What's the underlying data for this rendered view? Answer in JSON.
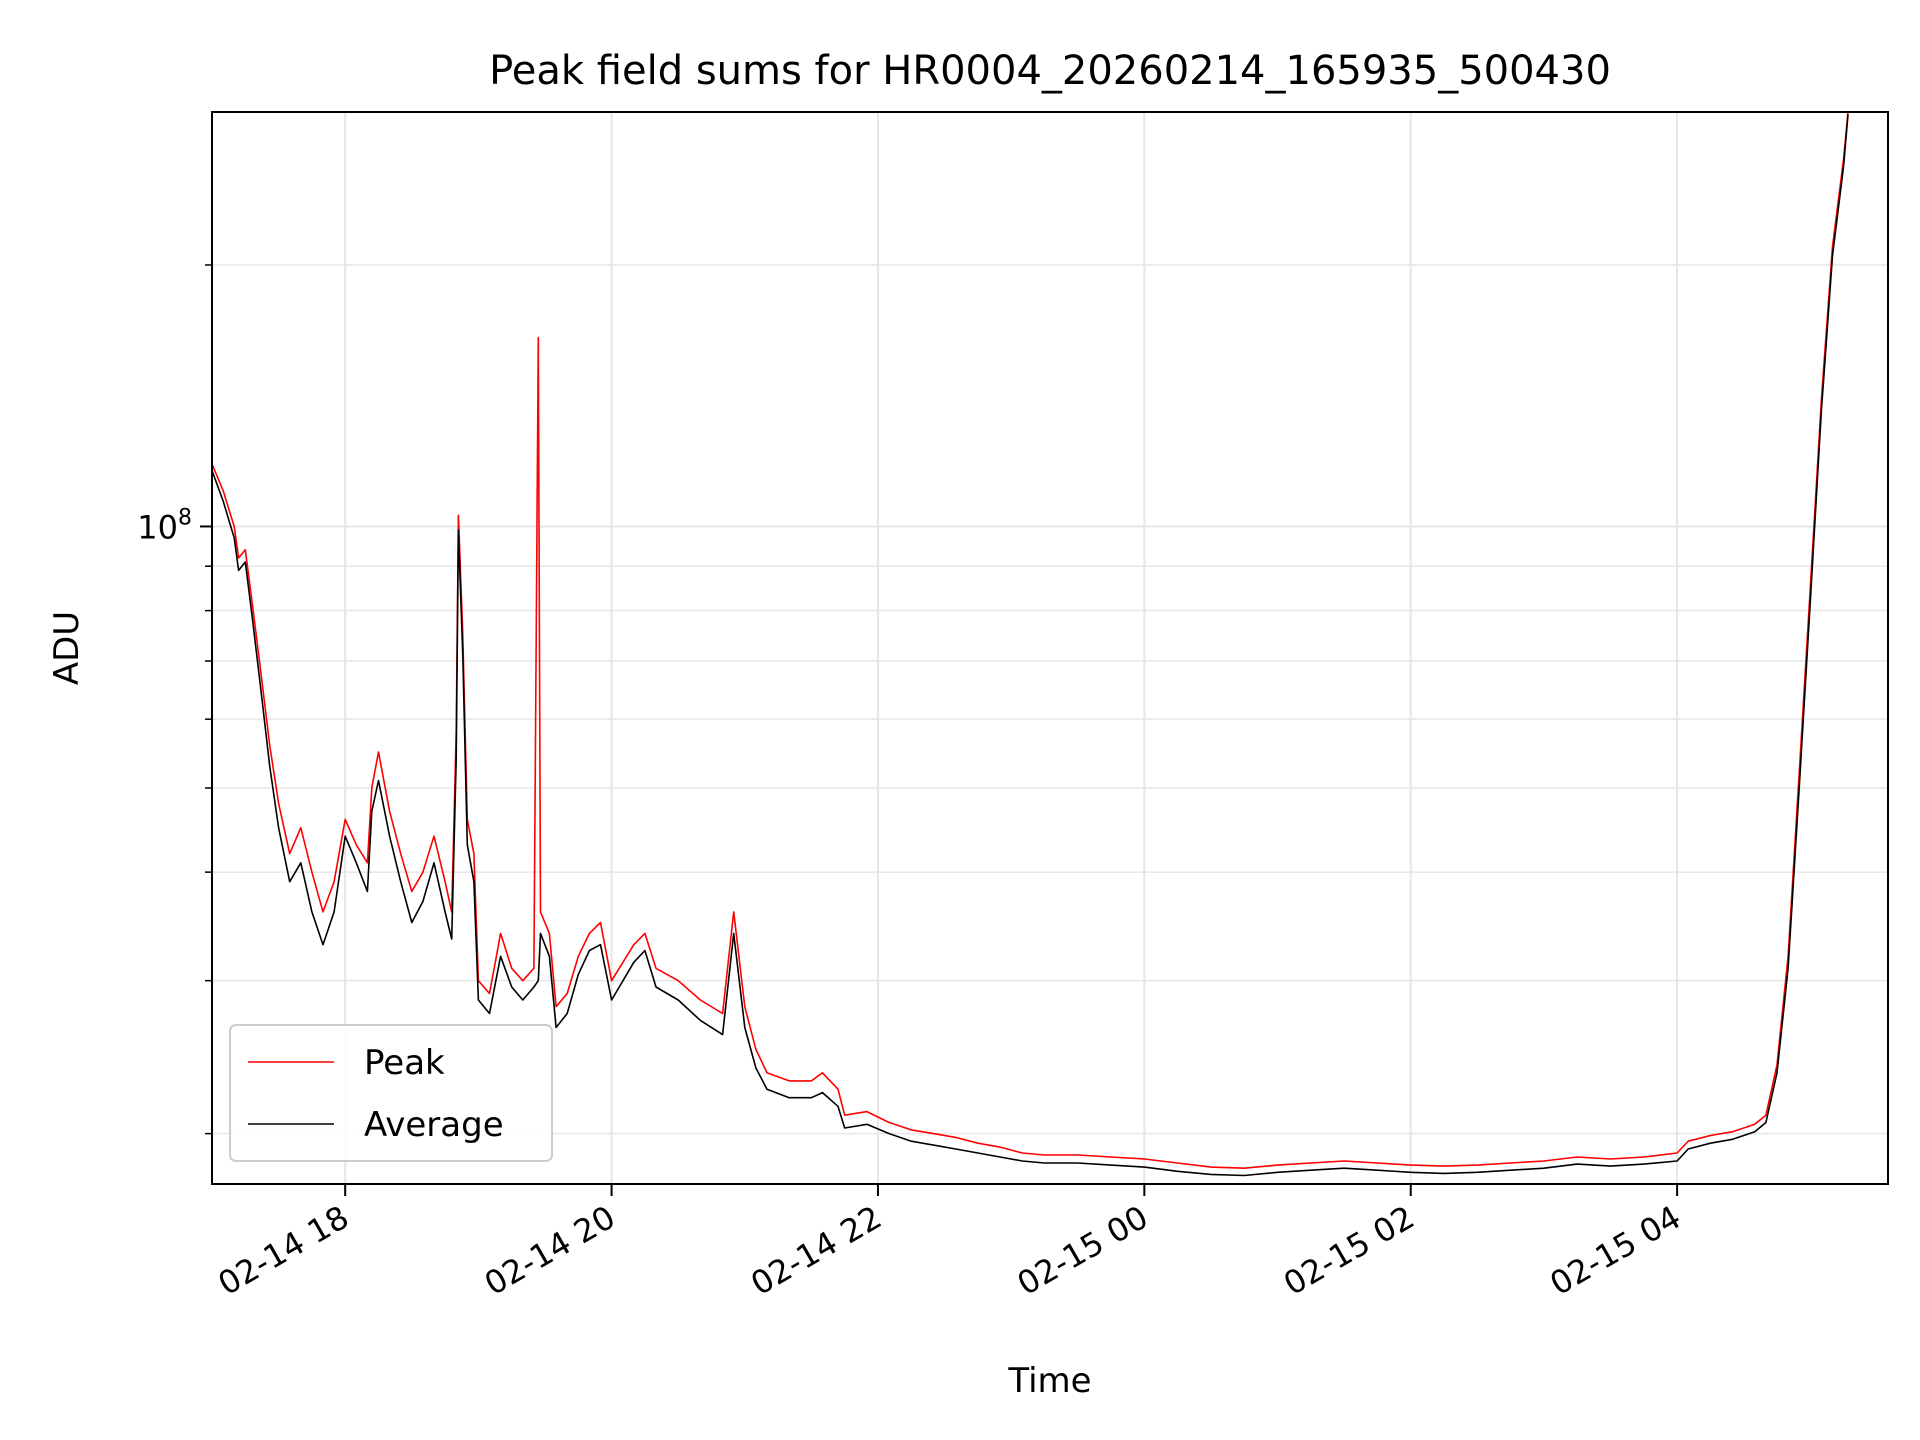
{
  "chart_data": {
    "type": "line",
    "title": "Peak field sums for HR0004_20260214_165935_500430",
    "xlabel": "Time",
    "ylabel": "ADU",
    "y_scale": "log",
    "ylim": [
      17500000,
      300000000
    ],
    "xlim": [
      "2026-02-14 17:00",
      "2026-02-15 05:35"
    ],
    "y_major_tick_labels": [
      {
        "value": 100000000,
        "base": "10",
        "exp": "8"
      }
    ],
    "y_minor_ticks": [
      20000000,
      30000000,
      40000000,
      50000000,
      60000000,
      70000000,
      80000000,
      90000000,
      200000000
    ],
    "x_ticks": [
      {
        "t": "2026-02-14 18:00",
        "label": "02-14 18"
      },
      {
        "t": "2026-02-14 20:00",
        "label": "02-14 20"
      },
      {
        "t": "2026-02-14 22:00",
        "label": "02-14 22"
      },
      {
        "t": "2026-02-15 00:00",
        "label": "02-15 00"
      },
      {
        "t": "2026-02-15 02:00",
        "label": "02-15 02"
      },
      {
        "t": "2026-02-15 04:00",
        "label": "02-15 04"
      }
    ],
    "grid": true,
    "legend_position": "lower-left",
    "series": [
      {
        "name": "Peak",
        "color": "#ff0000",
        "points": [
          [
            "2026-02-14 17:00",
            118000000
          ],
          [
            "2026-02-14 17:05",
            110000000
          ],
          [
            "2026-02-14 17:10",
            100000000
          ],
          [
            "2026-02-14 17:12",
            92000000
          ],
          [
            "2026-02-14 17:15",
            94000000
          ],
          [
            "2026-02-14 17:18",
            82000000
          ],
          [
            "2026-02-14 17:22",
            68000000
          ],
          [
            "2026-02-14 17:26",
            56000000
          ],
          [
            "2026-02-14 17:30",
            48000000
          ],
          [
            "2026-02-14 17:35",
            42000000
          ],
          [
            "2026-02-14 17:40",
            45000000
          ],
          [
            "2026-02-14 17:45",
            40000000
          ],
          [
            "2026-02-14 17:50",
            36000000
          ],
          [
            "2026-02-14 17:55",
            39000000
          ],
          [
            "2026-02-14 18:00",
            46000000
          ],
          [
            "2026-02-14 18:05",
            43000000
          ],
          [
            "2026-02-14 18:10",
            41000000
          ],
          [
            "2026-02-14 18:12",
            50000000
          ],
          [
            "2026-02-14 18:15",
            55000000
          ],
          [
            "2026-02-14 18:20",
            47000000
          ],
          [
            "2026-02-14 18:25",
            42000000
          ],
          [
            "2026-02-14 18:30",
            38000000
          ],
          [
            "2026-02-14 18:35",
            40000000
          ],
          [
            "2026-02-14 18:40",
            44000000
          ],
          [
            "2026-02-14 18:45",
            39000000
          ],
          [
            "2026-02-14 18:48",
            36000000
          ],
          [
            "2026-02-14 18:50",
            58000000
          ],
          [
            "2026-02-14 18:51",
            103000000
          ],
          [
            "2026-02-14 18:53",
            75000000
          ],
          [
            "2026-02-14 18:55",
            46000000
          ],
          [
            "2026-02-14 18:58",
            42000000
          ],
          [
            "2026-02-14 19:00",
            30000000
          ],
          [
            "2026-02-14 19:05",
            29000000
          ],
          [
            "2026-02-14 19:10",
            34000000
          ],
          [
            "2026-02-14 19:15",
            31000000
          ],
          [
            "2026-02-14 19:20",
            30000000
          ],
          [
            "2026-02-14 19:25",
            31000000
          ],
          [
            "2026-02-14 19:27",
            165000000
          ],
          [
            "2026-02-14 19:28",
            36000000
          ],
          [
            "2026-02-14 19:32",
            34000000
          ],
          [
            "2026-02-14 19:35",
            28000000
          ],
          [
            "2026-02-14 19:40",
            29000000
          ],
          [
            "2026-02-14 19:45",
            32000000
          ],
          [
            "2026-02-14 19:50",
            34000000
          ],
          [
            "2026-02-14 19:55",
            35000000
          ],
          [
            "2026-02-14 20:00",
            30000000
          ],
          [
            "2026-02-14 20:10",
            33000000
          ],
          [
            "2026-02-14 20:15",
            34000000
          ],
          [
            "2026-02-14 20:20",
            31000000
          ],
          [
            "2026-02-14 20:30",
            30000000
          ],
          [
            "2026-02-14 20:40",
            28500000
          ],
          [
            "2026-02-14 20:50",
            27500000
          ],
          [
            "2026-02-14 20:55",
            36000000
          ],
          [
            "2026-02-14 21:00",
            28000000
          ],
          [
            "2026-02-14 21:05",
            25000000
          ],
          [
            "2026-02-14 21:10",
            23500000
          ],
          [
            "2026-02-14 21:20",
            23000000
          ],
          [
            "2026-02-14 21:30",
            23000000
          ],
          [
            "2026-02-14 21:35",
            23500000
          ],
          [
            "2026-02-14 21:42",
            22500000
          ],
          [
            "2026-02-14 21:45",
            21000000
          ],
          [
            "2026-02-14 21:55",
            21200000
          ],
          [
            "2026-02-14 22:05",
            20600000
          ],
          [
            "2026-02-14 22:15",
            20200000
          ],
          [
            "2026-02-14 22:25",
            20000000
          ],
          [
            "2026-02-14 22:35",
            19800000
          ],
          [
            "2026-02-14 22:45",
            19500000
          ],
          [
            "2026-02-14 22:55",
            19300000
          ],
          [
            "2026-02-14 23:05",
            19000000
          ],
          [
            "2026-02-14 23:15",
            18900000
          ],
          [
            "2026-02-14 23:30",
            18900000
          ],
          [
            "2026-02-14 23:45",
            18800000
          ],
          [
            "2026-02-15 00:00",
            18700000
          ],
          [
            "2026-02-15 00:15",
            18500000
          ],
          [
            "2026-02-15 00:30",
            18300000
          ],
          [
            "2026-02-15 00:45",
            18250000
          ],
          [
            "2026-02-15 01:00",
            18400000
          ],
          [
            "2026-02-15 01:15",
            18500000
          ],
          [
            "2026-02-15 01:30",
            18600000
          ],
          [
            "2026-02-15 01:45",
            18500000
          ],
          [
            "2026-02-15 02:00",
            18400000
          ],
          [
            "2026-02-15 02:15",
            18350000
          ],
          [
            "2026-02-15 02:30",
            18400000
          ],
          [
            "2026-02-15 02:45",
            18500000
          ],
          [
            "2026-02-15 03:00",
            18600000
          ],
          [
            "2026-02-15 03:15",
            18800000
          ],
          [
            "2026-02-15 03:30",
            18700000
          ],
          [
            "2026-02-15 03:45",
            18800000
          ],
          [
            "2026-02-15 04:00",
            19000000
          ],
          [
            "2026-02-15 04:05",
            19600000
          ],
          [
            "2026-02-15 04:15",
            19900000
          ],
          [
            "2026-02-15 04:25",
            20100000
          ],
          [
            "2026-02-15 04:35",
            20500000
          ],
          [
            "2026-02-15 04:40",
            21000000
          ],
          [
            "2026-02-15 04:45",
            24000000
          ],
          [
            "2026-02-15 04:50",
            32000000
          ],
          [
            "2026-02-15 04:55",
            52000000
          ],
          [
            "2026-02-15 05:00",
            85000000
          ],
          [
            "2026-02-15 05:05",
            140000000
          ],
          [
            "2026-02-15 05:10",
            210000000
          ],
          [
            "2026-02-15 05:15",
            265000000
          ],
          [
            "2026-02-15 05:17",
            300000000
          ]
        ]
      },
      {
        "name": "Average",
        "color": "#000000",
        "points": [
          [
            "2026-02-14 17:00",
            116000000
          ],
          [
            "2026-02-14 17:05",
            107000000
          ],
          [
            "2026-02-14 17:10",
            97000000
          ],
          [
            "2026-02-14 17:12",
            89000000
          ],
          [
            "2026-02-14 17:15",
            91000000
          ],
          [
            "2026-02-14 17:18",
            79000000
          ],
          [
            "2026-02-14 17:22",
            65000000
          ],
          [
            "2026-02-14 17:26",
            53000000
          ],
          [
            "2026-02-14 17:30",
            45000000
          ],
          [
            "2026-02-14 17:35",
            39000000
          ],
          [
            "2026-02-14 17:40",
            41000000
          ],
          [
            "2026-02-14 17:45",
            36000000
          ],
          [
            "2026-02-14 17:50",
            33000000
          ],
          [
            "2026-02-14 17:55",
            36000000
          ],
          [
            "2026-02-14 18:00",
            44000000
          ],
          [
            "2026-02-14 18:05",
            41000000
          ],
          [
            "2026-02-14 18:10",
            38000000
          ],
          [
            "2026-02-14 18:12",
            47000000
          ],
          [
            "2026-02-14 18:15",
            51000000
          ],
          [
            "2026-02-14 18:20",
            44000000
          ],
          [
            "2026-02-14 18:25",
            39000000
          ],
          [
            "2026-02-14 18:30",
            35000000
          ],
          [
            "2026-02-14 18:35",
            37000000
          ],
          [
            "2026-02-14 18:40",
            41000000
          ],
          [
            "2026-02-14 18:45",
            36000000
          ],
          [
            "2026-02-14 18:48",
            33500000
          ],
          [
            "2026-02-14 18:50",
            54000000
          ],
          [
            "2026-02-14 18:51",
            99000000
          ],
          [
            "2026-02-14 18:53",
            71000000
          ],
          [
            "2026-02-14 18:55",
            43000000
          ],
          [
            "2026-02-14 18:58",
            39000000
          ],
          [
            "2026-02-14 19:00",
            28500000
          ],
          [
            "2026-02-14 19:05",
            27500000
          ],
          [
            "2026-02-14 19:10",
            32000000
          ],
          [
            "2026-02-14 19:15",
            29500000
          ],
          [
            "2026-02-14 19:20",
            28500000
          ],
          [
            "2026-02-14 19:25",
            29500000
          ],
          [
            "2026-02-14 19:27",
            30000000
          ],
          [
            "2026-02-14 19:28",
            34000000
          ],
          [
            "2026-02-14 19:32",
            32000000
          ],
          [
            "2026-02-14 19:35",
            26500000
          ],
          [
            "2026-02-14 19:40",
            27500000
          ],
          [
            "2026-02-14 19:45",
            30500000
          ],
          [
            "2026-02-14 19:50",
            32500000
          ],
          [
            "2026-02-14 19:55",
            33000000
          ],
          [
            "2026-02-14 20:00",
            28500000
          ],
          [
            "2026-02-14 20:10",
            31500000
          ],
          [
            "2026-02-14 20:15",
            32500000
          ],
          [
            "2026-02-14 20:20",
            29500000
          ],
          [
            "2026-02-14 20:30",
            28500000
          ],
          [
            "2026-02-14 20:40",
            27000000
          ],
          [
            "2026-02-14 20:50",
            26000000
          ],
          [
            "2026-02-14 20:55",
            34000000
          ],
          [
            "2026-02-14 21:00",
            26500000
          ],
          [
            "2026-02-14 21:05",
            23800000
          ],
          [
            "2026-02-14 21:10",
            22500000
          ],
          [
            "2026-02-14 21:20",
            22000000
          ],
          [
            "2026-02-14 21:30",
            22000000
          ],
          [
            "2026-02-14 21:35",
            22300000
          ],
          [
            "2026-02-14 21:42",
            21500000
          ],
          [
            "2026-02-14 21:45",
            20300000
          ],
          [
            "2026-02-14 21:55",
            20500000
          ],
          [
            "2026-02-14 22:05",
            20000000
          ],
          [
            "2026-02-14 22:15",
            19600000
          ],
          [
            "2026-02-14 22:25",
            19400000
          ],
          [
            "2026-02-14 22:35",
            19200000
          ],
          [
            "2026-02-14 22:45",
            19000000
          ],
          [
            "2026-02-14 22:55",
            18800000
          ],
          [
            "2026-02-14 23:05",
            18600000
          ],
          [
            "2026-02-14 23:15",
            18500000
          ],
          [
            "2026-02-14 23:30",
            18500000
          ],
          [
            "2026-02-14 23:45",
            18400000
          ],
          [
            "2026-02-15 00:00",
            18300000
          ],
          [
            "2026-02-15 00:15",
            18100000
          ],
          [
            "2026-02-15 00:30",
            17950000
          ],
          [
            "2026-02-15 00:45",
            17900000
          ],
          [
            "2026-02-15 01:00",
            18050000
          ],
          [
            "2026-02-15 01:15",
            18150000
          ],
          [
            "2026-02-15 01:30",
            18250000
          ],
          [
            "2026-02-15 01:45",
            18150000
          ],
          [
            "2026-02-15 02:00",
            18050000
          ],
          [
            "2026-02-15 02:15",
            18000000
          ],
          [
            "2026-02-15 02:30",
            18050000
          ],
          [
            "2026-02-15 02:45",
            18150000
          ],
          [
            "2026-02-15 03:00",
            18250000
          ],
          [
            "2026-02-15 03:15",
            18450000
          ],
          [
            "2026-02-15 03:30",
            18350000
          ],
          [
            "2026-02-15 03:45",
            18450000
          ],
          [
            "2026-02-15 04:00",
            18600000
          ],
          [
            "2026-02-15 04:05",
            19200000
          ],
          [
            "2026-02-15 04:15",
            19500000
          ],
          [
            "2026-02-15 04:25",
            19700000
          ],
          [
            "2026-02-15 04:35",
            20100000
          ],
          [
            "2026-02-15 04:40",
            20600000
          ],
          [
            "2026-02-15 04:45",
            23500000
          ],
          [
            "2026-02-15 04:50",
            31000000
          ],
          [
            "2026-02-15 04:55",
            50000000
          ],
          [
            "2026-02-15 05:00",
            82000000
          ],
          [
            "2026-02-15 05:05",
            136000000
          ],
          [
            "2026-02-15 05:10",
            205000000
          ],
          [
            "2026-02-15 05:15",
            260000000
          ],
          [
            "2026-02-15 05:17",
            298000000
          ]
        ]
      }
    ]
  }
}
